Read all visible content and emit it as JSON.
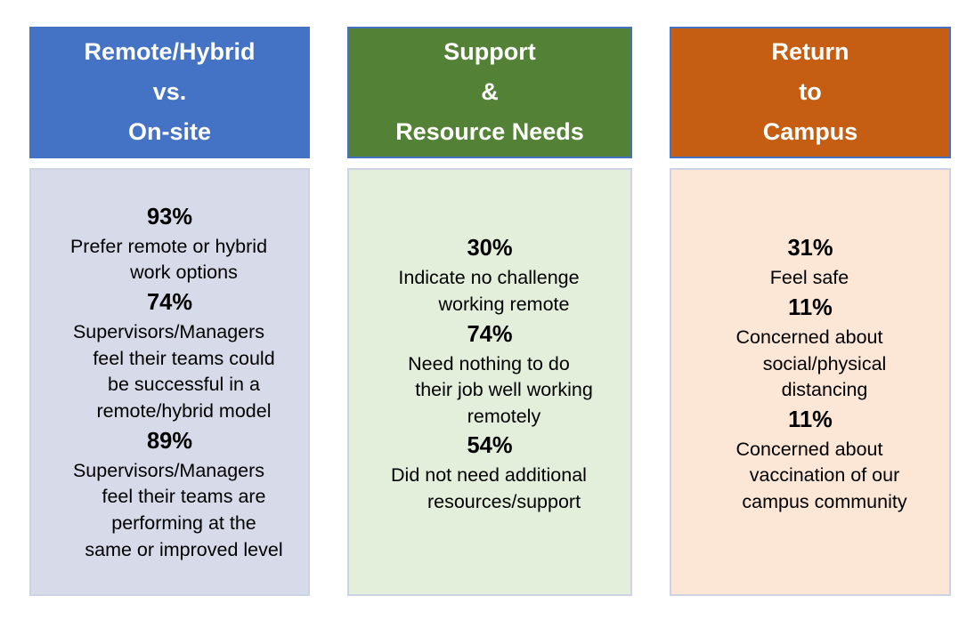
{
  "palette": {
    "page_background": "#FFFFFF",
    "header_border": "#4472C4",
    "panel_border": "#CDD2E4",
    "header_text": "#FFFFFF",
    "body_text": "#000000"
  },
  "columns": [
    {
      "id": "remote-hybrid-vs-onsite",
      "header": {
        "lines": [
          "Remote/Hybrid",
          "vs.",
          "On-site"
        ],
        "bg": "#4472C4",
        "border": "#4472C4"
      },
      "body_bg": "#D6DAE9",
      "stats": [
        {
          "value": "93%",
          "label": "Prefer remote or hybrid\nwork options"
        },
        {
          "value": "74%",
          "label": "Supervisors/Managers\nfeel their teams could\nbe successful in a\nremote/hybrid model"
        },
        {
          "value": "89%",
          "label": "Supervisors/Managers\nfeel their teams are\nperforming at the\nsame or improved level"
        }
      ]
    },
    {
      "id": "support-resource-needs",
      "header": {
        "lines": [
          "Support",
          "&",
          "Resource Needs"
        ],
        "bg": "#538135",
        "border": "#4472C4"
      },
      "body_bg": "#E3EFDB",
      "stats": [
        {
          "value": "30%",
          "label": "Indicate no challenge\nworking remote"
        },
        {
          "value": "74%",
          "label": "Need nothing to do\ntheir job well working\nremotely"
        },
        {
          "value": "54%",
          "label": "Did not need additional\nresources/support"
        }
      ]
    },
    {
      "id": "return-to-campus",
      "header": {
        "lines": [
          "Return",
          "to",
          "Campus"
        ],
        "bg": "#C55E12",
        "border": "#4472C4"
      },
      "body_bg": "#FCE6D6",
      "stats": [
        {
          "value": "31%",
          "label": "Feel safe"
        },
        {
          "value": "11%",
          "label": "Concerned about\nsocial/physical\ndistancing"
        },
        {
          "value": "11%",
          "label": "Concerned about\nvaccination of our\ncampus community"
        }
      ]
    }
  ]
}
